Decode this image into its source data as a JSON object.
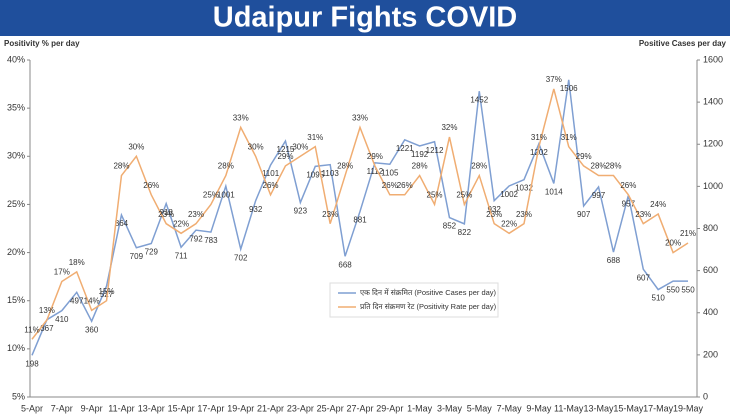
{
  "chart_data": {
    "type": "line",
    "title": "Udaipur Fights COVID",
    "y_label": "Positivity % per day",
    "y2_label": "Positive Cases per day",
    "categories": [
      "5-Apr",
      null,
      "7-Apr",
      null,
      "9-Apr",
      null,
      "11-Apr",
      null,
      "13-Apr",
      null,
      "15-Apr",
      null,
      "17-Apr",
      null,
      "19-Apr",
      null,
      "21-Apr",
      null,
      "23-Apr",
      null,
      "25-Apr",
      null,
      "27-Apr",
      null,
      "29-Apr",
      null,
      "1-May",
      null,
      "3-May",
      null,
      "5-May",
      null,
      "7-May",
      null,
      "9-May",
      null,
      "11-May",
      null,
      "13-May",
      null,
      "15-May",
      null,
      "17-May",
      null,
      "19-May"
    ],
    "series": [
      {
        "name": "एक दिन में संक्रमित (Positive Cases per day)",
        "color": "#7f9fd2",
        "axis": "y2",
        "values": [
          198,
          367,
          410,
          497,
          360,
          527,
          864,
          709,
          729,
          918,
          711,
          792,
          783,
          1001,
          702,
          932,
          1101,
          1215,
          923,
          1095,
          1103,
          668,
          881,
          1112,
          1105,
          1221,
          1192,
          1212,
          852,
          822,
          1452,
          932,
          1002,
          1032,
          1202,
          1014,
          1506,
          907,
          997,
          688,
          957,
          607,
          510,
          550,
          550
        ]
      },
      {
        "name": "प्रति दिन संक्रमण रेट (Positivity Rate per day)",
        "color": "#f0ad72",
        "values": [
          11,
          13,
          17,
          18,
          14,
          15,
          28,
          30,
          26,
          23,
          22,
          23,
          25,
          28,
          33,
          30,
          26,
          29,
          30,
          31,
          23,
          28,
          33,
          29,
          26,
          26,
          28,
          25,
          32,
          25,
          28,
          23,
          22,
          23,
          31,
          37,
          31,
          29,
          28,
          28,
          26,
          23,
          24,
          20,
          21
        ],
        "value_labels": [
          "11%",
          "13%",
          "17%",
          "18%",
          "14%",
          "15%",
          "28%",
          "30%",
          "26%",
          "23%",
          "22%",
          "23%",
          "25%",
          "28%",
          "33%",
          "30%",
          "26%",
          "29%",
          "30%",
          "31%",
          "23%",
          "28%",
          "33%",
          "29%",
          "26%",
          "26%",
          "28%",
          "25%",
          "32%",
          "25%",
          "28%",
          "23%",
          "22%",
          "23%",
          "31%",
          "37%",
          "31%",
          "29%",
          "28%",
          "28%",
          "26%",
          "23%",
          "24%",
          "20%",
          "21%"
        ]
      }
    ],
    "ylim": [
      5,
      40
    ],
    "yticks": [
      {
        "value": 5,
        "label": "5%"
      },
      {
        "value": 10,
        "label": "10%"
      },
      {
        "value": 15,
        "label": "15%"
      },
      {
        "value": 20,
        "label": "20%"
      },
      {
        "value": 25,
        "label": "25%"
      },
      {
        "value": 30,
        "label": "30%"
      },
      {
        "value": 35,
        "label": "35%"
      },
      {
        "value": 40,
        "label": "40%"
      }
    ],
    "y2lim": [
      0,
      1600
    ],
    "y2ticks": [
      0,
      200,
      400,
      600,
      800,
      1000,
      1200,
      1400,
      1600
    ],
    "grid": false
  }
}
